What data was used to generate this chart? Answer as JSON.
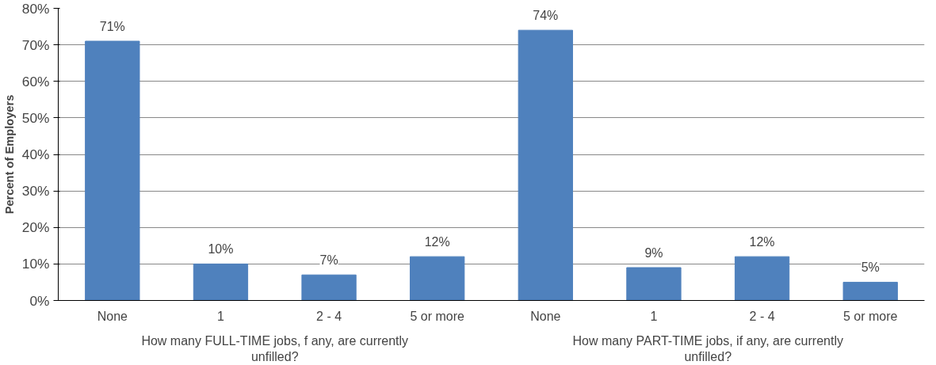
{
  "chart_data": {
    "type": "bar",
    "ylabel": "Percent of Employers",
    "categories": [
      "None",
      "1",
      "2 - 4",
      "5 or more",
      "None",
      "1",
      "2 - 4",
      "5 or more"
    ],
    "values": [
      71,
      10,
      7,
      12,
      74,
      9,
      12,
      5
    ],
    "value_labels": [
      "71%",
      "10%",
      "7%",
      "12%",
      "74%",
      "9%",
      "12%",
      "5%"
    ],
    "color": "#4f81bd",
    "ylim": [
      0,
      80
    ],
    "yticks": [
      {
        "value": 0,
        "label": "0%"
      },
      {
        "value": 10,
        "label": "10%"
      },
      {
        "value": 20,
        "label": "20%"
      },
      {
        "value": 30,
        "label": "30%"
      },
      {
        "value": 40,
        "label": "40%"
      },
      {
        "value": 50,
        "label": "50%"
      },
      {
        "value": 60,
        "label": "60%"
      },
      {
        "value": 70,
        "label": "70%"
      },
      {
        "value": 80,
        "label": "80%"
      }
    ],
    "grid": "y",
    "annotations": [
      "How many FULL-TIME jobs, f any, are currently\nunfilled?",
      "How many PART-TIME jobs, if any, are currently\nunfilled?"
    ]
  }
}
